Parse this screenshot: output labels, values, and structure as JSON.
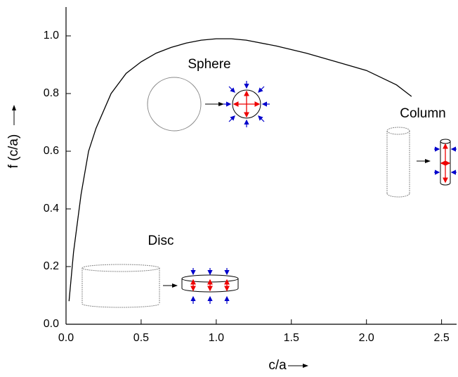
{
  "chart_data": {
    "type": "line",
    "x_label": "c/a",
    "y_label": "f (c/a)",
    "x": [
      0.02,
      0.05,
      0.1,
      0.15,
      0.2,
      0.3,
      0.4,
      0.5,
      0.6,
      0.7,
      0.8,
      0.9,
      1.0,
      1.1,
      1.2,
      1.4,
      1.6,
      1.8,
      2.0,
      2.2,
      2.3
    ],
    "values": [
      0.08,
      0.25,
      0.45,
      0.6,
      0.68,
      0.8,
      0.87,
      0.91,
      0.94,
      0.96,
      0.975,
      0.985,
      0.99,
      0.99,
      0.985,
      0.965,
      0.94,
      0.91,
      0.88,
      0.83,
      0.79
    ],
    "color": "#000000",
    "xlim": [
      0,
      2.6
    ],
    "ylim": [
      0,
      1.1
    ],
    "xticks": [
      {
        "value": 0,
        "label": "0.0"
      },
      0.5,
      {
        "value": 1,
        "label": "1.0"
      },
      1.5,
      {
        "value": 2,
        "label": "2.0"
      },
      2.5
    ],
    "yticks": [
      {
        "value": 0,
        "label": "0.0"
      },
      0.2,
      0.4,
      0.6,
      0.8,
      {
        "value": 1,
        "label": "1.0"
      }
    ],
    "annotations": [
      "Sphere",
      "Column",
      "Disc"
    ]
  }
}
